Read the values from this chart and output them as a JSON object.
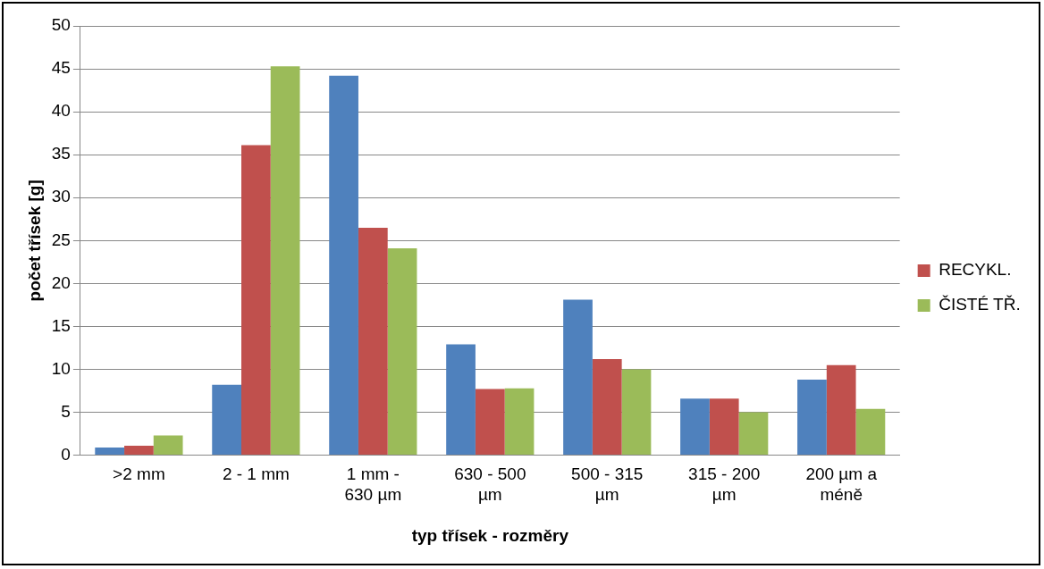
{
  "chart_data": {
    "type": "bar",
    "xlabel": "typ třísek - rozměry",
    "ylabel": "počet třísek [g]",
    "categories": [
      ">2 mm",
      "2 - 1 mm",
      "1 mm - 630 µm",
      "630 - 500 µm",
      "500 - 315 µm",
      "315 - 200 µm",
      "200 µm a méně"
    ],
    "series": [
      {
        "color": "#4f81bd",
        "values": [
          0.9,
          8.2,
          44.2,
          12.9,
          18.1,
          6.6,
          8.8
        ]
      },
      {
        "name": "RECYKL.",
        "color": "#c0504d",
        "values": [
          1.1,
          36.1,
          26.5,
          7.7,
          11.2,
          6.6,
          10.5
        ]
      },
      {
        "name": "ČISTÉ TŘ.",
        "color": "#9bbb59",
        "values": [
          2.3,
          45.3,
          24.1,
          7.8,
          10.0,
          5.0,
          5.4
        ]
      }
    ],
    "ylim": [
      0,
      50
    ],
    "yticks": [
      0,
      5,
      10,
      15,
      20,
      25,
      30,
      35,
      40,
      45,
      50
    ],
    "grid": "y",
    "legend": "right"
  }
}
